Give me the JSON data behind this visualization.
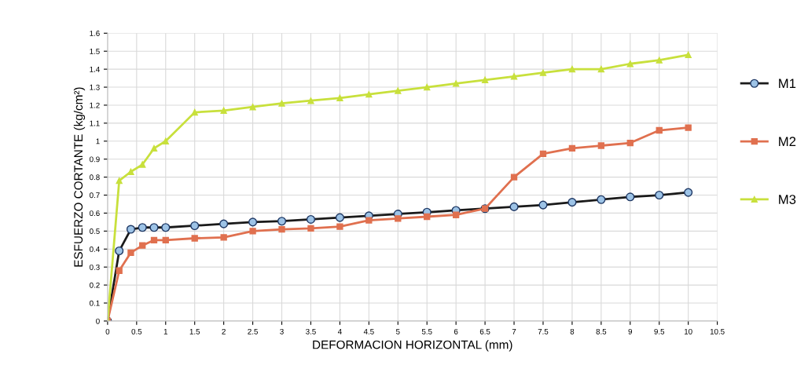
{
  "chart_data": {
    "type": "line",
    "xlabel": "DEFORMACION HORIZONTAL (mm)",
    "ylabel": "ESFUERZO CORTANTE (kg/cm²)",
    "x": [
      0,
      0.2,
      0.4,
      0.6,
      0.8,
      1,
      1.5,
      2,
      2.5,
      3,
      3.5,
      4,
      4.5,
      5,
      5.5,
      6,
      6.5,
      7,
      7.5,
      8,
      8.5,
      9,
      9.5,
      10
    ],
    "series": [
      {
        "name": "M1",
        "color": "#1a1a1a",
        "marker": "circle",
        "values": [
          0,
          0.39,
          0.51,
          0.52,
          0.52,
          0.52,
          0.53,
          0.54,
          0.55,
          0.555,
          0.565,
          0.575,
          0.585,
          0.595,
          0.605,
          0.615,
          0.625,
          0.635,
          0.645,
          0.66,
          0.675,
          0.69,
          0.7,
          0.715
        ]
      },
      {
        "name": "M2",
        "color": "#e0704f",
        "marker": "square",
        "values": [
          0,
          0.28,
          0.38,
          0.42,
          0.45,
          0.45,
          0.46,
          0.465,
          0.5,
          0.51,
          0.515,
          0.525,
          0.56,
          0.57,
          0.58,
          0.59,
          0.625,
          0.8,
          0.93,
          0.96,
          0.975,
          0.99,
          1.06,
          1.075
        ]
      },
      {
        "name": "M3",
        "color": "#c8e03c",
        "marker": "triangle",
        "values": [
          0,
          0.78,
          0.83,
          0.87,
          0.96,
          1.0,
          1.16,
          1.17,
          1.19,
          1.21,
          1.225,
          1.24,
          1.26,
          1.28,
          1.3,
          1.32,
          1.34,
          1.36,
          1.38,
          1.4,
          1.4,
          1.43,
          1.45,
          1.48
        ]
      }
    ],
    "xlim": [
      0,
      10.5
    ],
    "xticks": [
      0,
      0.5,
      1,
      1.5,
      2,
      2.5,
      3,
      3.5,
      4,
      4.5,
      5,
      5.5,
      6,
      6.5,
      7,
      7.5,
      8,
      8.5,
      9,
      9.5,
      10,
      10.5
    ],
    "ylim": [
      0,
      1.6
    ],
    "yticks": [
      0,
      0.1,
      0.2,
      0.3,
      0.4,
      0.5,
      0.6,
      0.7,
      0.8,
      0.9,
      1,
      1.1,
      1.2,
      1.3,
      1.4,
      1.5,
      1.6
    ],
    "grid": true,
    "legend": "right"
  }
}
